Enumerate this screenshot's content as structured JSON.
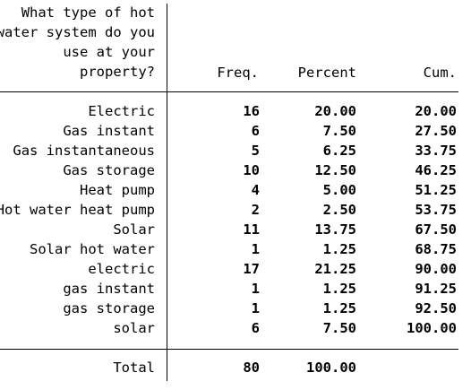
{
  "table": {
    "variable_title_lines": [
      "What type of hot",
      "water system do you",
      "use at your",
      "property?"
    ],
    "columns": {
      "freq": "Freq.",
      "percent": "Percent",
      "cum": "Cum."
    },
    "rows": [
      {
        "label": "Electric",
        "freq": "16",
        "percent": "20.00",
        "cum": "20.00"
      },
      {
        "label": "Gas instant",
        "freq": "6",
        "percent": "7.50",
        "cum": "27.50"
      },
      {
        "label": "Gas instantaneous",
        "freq": "5",
        "percent": "6.25",
        "cum": "33.75"
      },
      {
        "label": "Gas storage",
        "freq": "10",
        "percent": "12.50",
        "cum": "46.25"
      },
      {
        "label": "Heat pump",
        "freq": "4",
        "percent": "5.00",
        "cum": "51.25"
      },
      {
        "label": "Hot water heat pump",
        "freq": "2",
        "percent": "2.50",
        "cum": "53.75"
      },
      {
        "label": "Solar",
        "freq": "11",
        "percent": "13.75",
        "cum": "67.50"
      },
      {
        "label": "Solar hot water",
        "freq": "1",
        "percent": "1.25",
        "cum": "68.75"
      },
      {
        "label": "electric",
        "freq": "17",
        "percent": "21.25",
        "cum": "90.00"
      },
      {
        "label": "gas instant",
        "freq": "1",
        "percent": "1.25",
        "cum": "91.25"
      },
      {
        "label": "gas storage",
        "freq": "1",
        "percent": "1.25",
        "cum": "92.50"
      },
      {
        "label": "solar",
        "freq": "6",
        "percent": "7.50",
        "cum": "100.00"
      }
    ],
    "total": {
      "label": "Total",
      "freq": "80",
      "percent": "100.00"
    }
  }
}
